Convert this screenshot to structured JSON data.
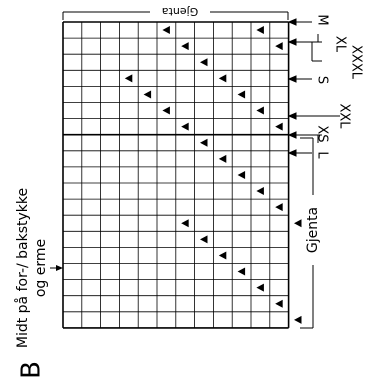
{
  "diagram": {
    "panel_letter": "B",
    "side_label_line1": "Midt på for-/ bakstykke",
    "side_label_line2": "og erme",
    "top_label": "Gjenta",
    "repeat_label": "Gjenta",
    "sizes": {
      "M": "M",
      "XL": "XL",
      "XXXL": "XXXL",
      "S": "S",
      "XXL": "XXL",
      "XS": "XS",
      "L": "L"
    },
    "grid": {
      "columns": 12,
      "rows": 19,
      "triangles": [
        [
          0,
          5
        ],
        [
          0,
          10
        ],
        [
          1,
          6
        ],
        [
          1,
          11
        ],
        [
          2,
          7
        ],
        [
          3,
          3
        ],
        [
          3,
          8
        ],
        [
          4,
          4
        ],
        [
          4,
          9
        ],
        [
          5,
          5
        ],
        [
          5,
          10
        ],
        [
          6,
          6
        ],
        [
          6,
          11
        ],
        [
          7,
          7
        ],
        [
          8,
          8
        ],
        [
          9,
          9
        ],
        [
          10,
          10
        ],
        [
          11,
          11
        ],
        [
          12,
          6
        ],
        [
          12,
          12
        ],
        [
          13,
          7
        ],
        [
          13,
          13
        ],
        [
          14,
          8
        ],
        [
          15,
          9
        ],
        [
          16,
          10
        ],
        [
          17,
          11
        ],
        [
          18,
          12
        ]
      ]
    }
  }
}
